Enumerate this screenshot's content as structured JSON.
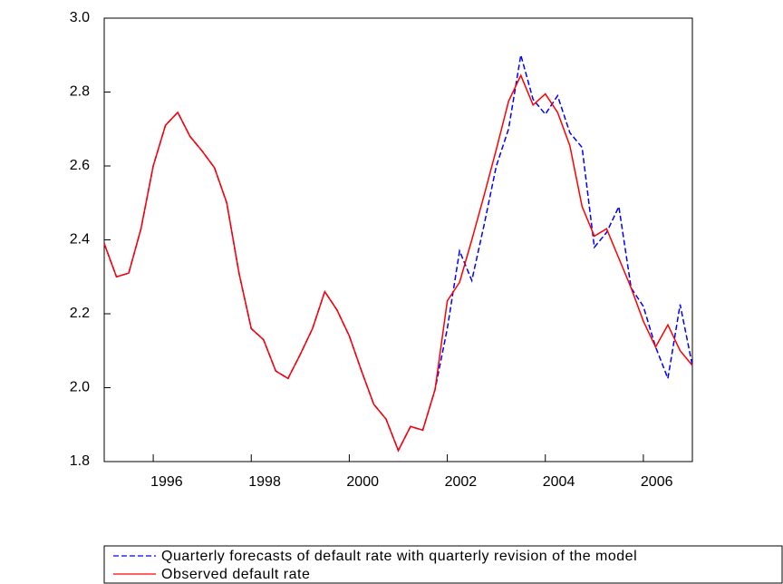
{
  "chart_data": {
    "type": "line",
    "x": [
      1995,
      1995.25,
      1995.5,
      1995.75,
      1996,
      1996.25,
      1996.5,
      1996.75,
      1997,
      1997.25,
      1997.5,
      1997.75,
      1998,
      1998.25,
      1998.5,
      1998.75,
      1999,
      1999.25,
      1999.5,
      1999.75,
      2000,
      2000.25,
      2000.5,
      2000.75,
      2001,
      2001.25,
      2001.5,
      2001.75,
      2002,
      2002.25,
      2002.5,
      2002.75,
      2003,
      2003.25,
      2003.5,
      2003.75,
      2004,
      2004.25,
      2004.5,
      2004.75,
      2005,
      2005.25,
      2005.5,
      2005.75,
      2006,
      2006.25,
      2006.5,
      2006.75,
      2007
    ],
    "series": [
      {
        "name": "Quarterly forecasts of default rate with quarterly revision of the model",
        "color": "#0000ff",
        "dash": true,
        "values": [
          2.39,
          2.3,
          2.31,
          2.43,
          2.6,
          2.71,
          2.745,
          2.68,
          2.64,
          2.595,
          2.5,
          2.31,
          2.16,
          2.13,
          2.045,
          2.025,
          2.09,
          2.16,
          2.26,
          2.21,
          2.14,
          2.045,
          1.955,
          1.915,
          1.83,
          1.895,
          1.885,
          1.995,
          2.16,
          2.37,
          2.29,
          2.44,
          2.6,
          2.7,
          2.9,
          2.78,
          2.74,
          2.79,
          2.69,
          2.65,
          2.38,
          2.42,
          2.49,
          2.27,
          2.22,
          2.11,
          2.025,
          2.225,
          2.06
        ]
      },
      {
        "name": "Observed default rate",
        "color": "#ff0000",
        "dash": false,
        "values": [
          2.39,
          2.3,
          2.31,
          2.43,
          2.6,
          2.71,
          2.745,
          2.68,
          2.64,
          2.595,
          2.5,
          2.31,
          2.16,
          2.13,
          2.045,
          2.025,
          2.09,
          2.16,
          2.26,
          2.21,
          2.14,
          2.045,
          1.955,
          1.915,
          1.83,
          1.895,
          1.885,
          1.995,
          2.235,
          2.285,
          2.4,
          2.52,
          2.645,
          2.775,
          2.845,
          2.765,
          2.795,
          2.745,
          2.655,
          2.49,
          2.41,
          2.43,
          2.35,
          2.27,
          2.18,
          2.11,
          2.17,
          2.1,
          2.06
        ]
      }
    ],
    "xlim": [
      1995,
      2007
    ],
    "xticks": [
      1996,
      1998,
      2000,
      2002,
      2004,
      2006
    ],
    "ylim": [
      1.8,
      3.0
    ],
    "yticks": [
      {
        "value": 1.8,
        "label": "1.8"
      },
      {
        "value": 2.0,
        "label": "2.0"
      },
      {
        "value": 2.2,
        "label": "2.2"
      },
      {
        "value": 2.4,
        "label": "2.4"
      },
      {
        "value": 2.6,
        "label": "2.6"
      },
      {
        "value": 2.8,
        "label": "2.8"
      },
      {
        "value": 3.0,
        "label": "3.0"
      }
    ],
    "legend": "bottom"
  }
}
